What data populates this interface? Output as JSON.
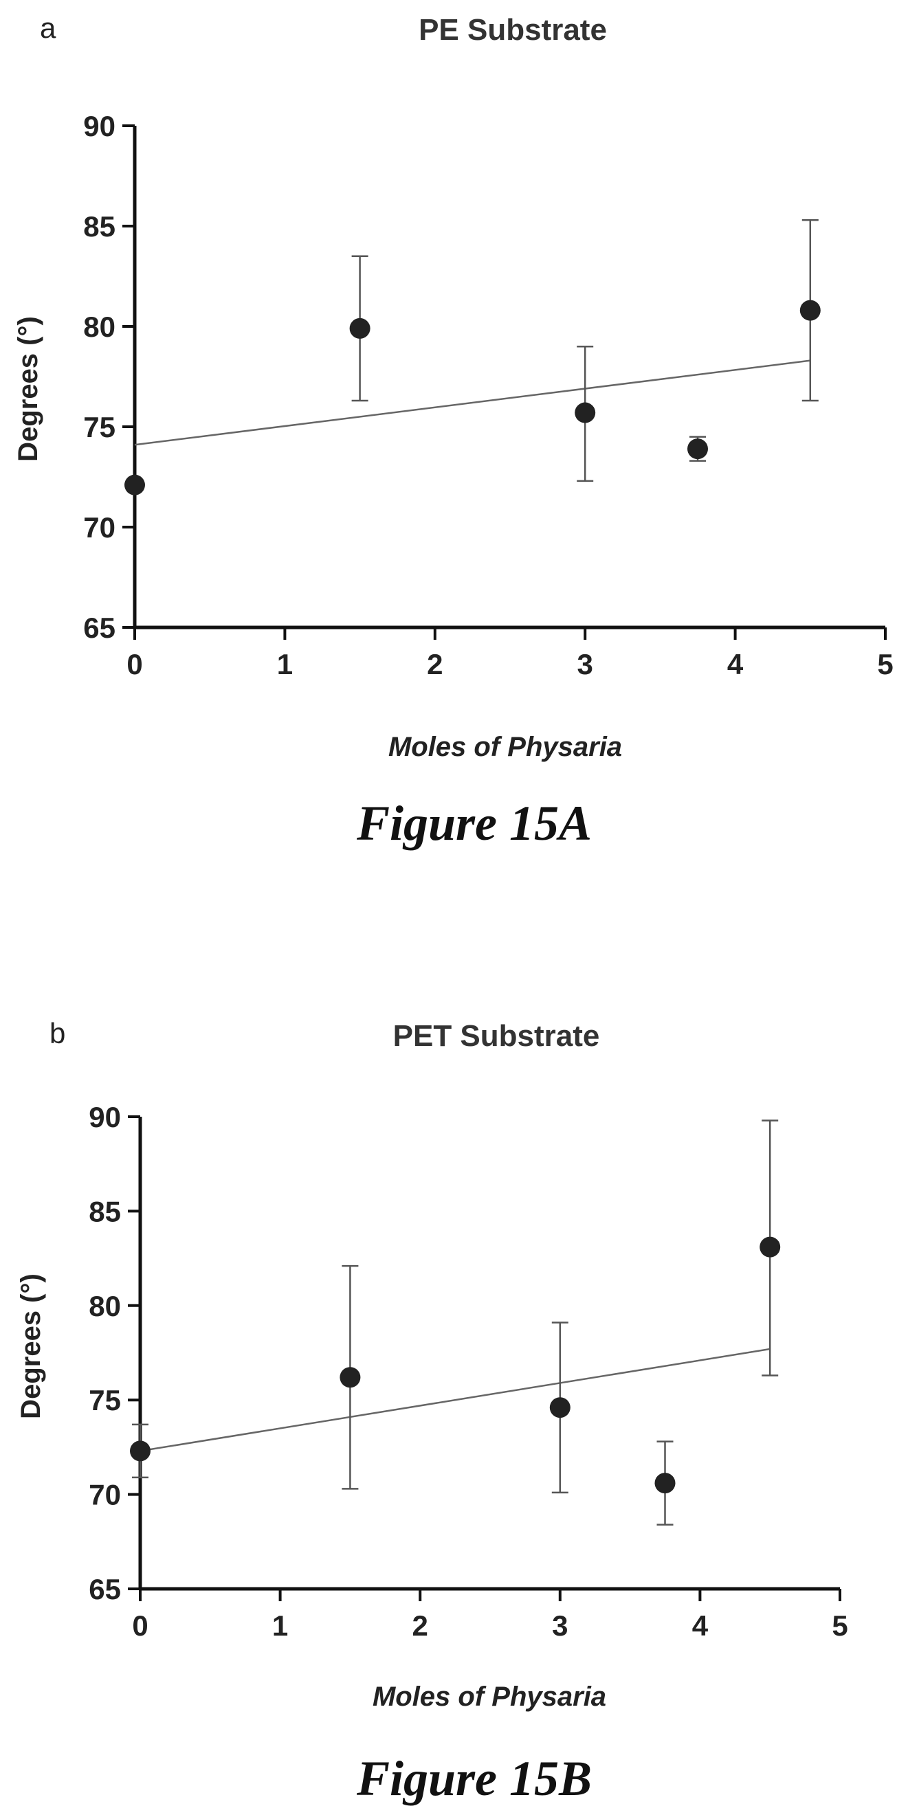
{
  "chart_data": [
    {
      "type": "scatter",
      "panel": "a",
      "title": "PE  Substrate",
      "xlabel": "Moles of Physaria",
      "ylabel": "Degrees (°)",
      "xlim": [
        0,
        5
      ],
      "ylim": [
        65,
        90
      ],
      "xticks": [
        0,
        1,
        2,
        3,
        4,
        5
      ],
      "yticks": [
        65,
        70,
        75,
        80,
        85,
        90
      ],
      "points": [
        {
          "x": 0,
          "y": 72.1,
          "err_low": 72.1,
          "err_high": 72.1
        },
        {
          "x": 1.5,
          "y": 79.9,
          "err_low": 76.3,
          "err_high": 83.5
        },
        {
          "x": 3,
          "y": 75.7,
          "err_low": 72.3,
          "err_high": 79.0
        },
        {
          "x": 3.75,
          "y": 73.9,
          "err_low": 73.3,
          "err_high": 74.5
        },
        {
          "x": 4.5,
          "y": 80.8,
          "err_low": 76.3,
          "err_high": 85.3
        }
      ],
      "trendline": {
        "x": [
          0,
          4.5
        ],
        "y": [
          74.1,
          78.3
        ]
      },
      "grid": false,
      "caption": "Figure 15A"
    },
    {
      "type": "scatter",
      "panel": "b",
      "title": "PET Substrate",
      "xlabel": "Moles of Physaria",
      "ylabel": "Degrees (°)",
      "xlim": [
        0,
        5
      ],
      "ylim": [
        65,
        90
      ],
      "xticks": [
        0,
        1,
        2,
        3,
        4,
        5
      ],
      "yticks": [
        65,
        70,
        75,
        80,
        85,
        90
      ],
      "points": [
        {
          "x": 0,
          "y": 72.3,
          "err_low": 70.9,
          "err_high": 73.7
        },
        {
          "x": 1.5,
          "y": 76.2,
          "err_low": 70.3,
          "err_high": 82.1
        },
        {
          "x": 3,
          "y": 74.6,
          "err_low": 70.1,
          "err_high": 79.1
        },
        {
          "x": 3.75,
          "y": 70.6,
          "err_low": 68.4,
          "err_high": 72.8
        },
        {
          "x": 4.5,
          "y": 83.1,
          "err_low": 76.3,
          "err_high": 89.8
        }
      ],
      "trendline": {
        "x": [
          0,
          4.5
        ],
        "y": [
          72.3,
          77.7
        ]
      },
      "grid": false,
      "caption": "Figure 15B"
    }
  ]
}
